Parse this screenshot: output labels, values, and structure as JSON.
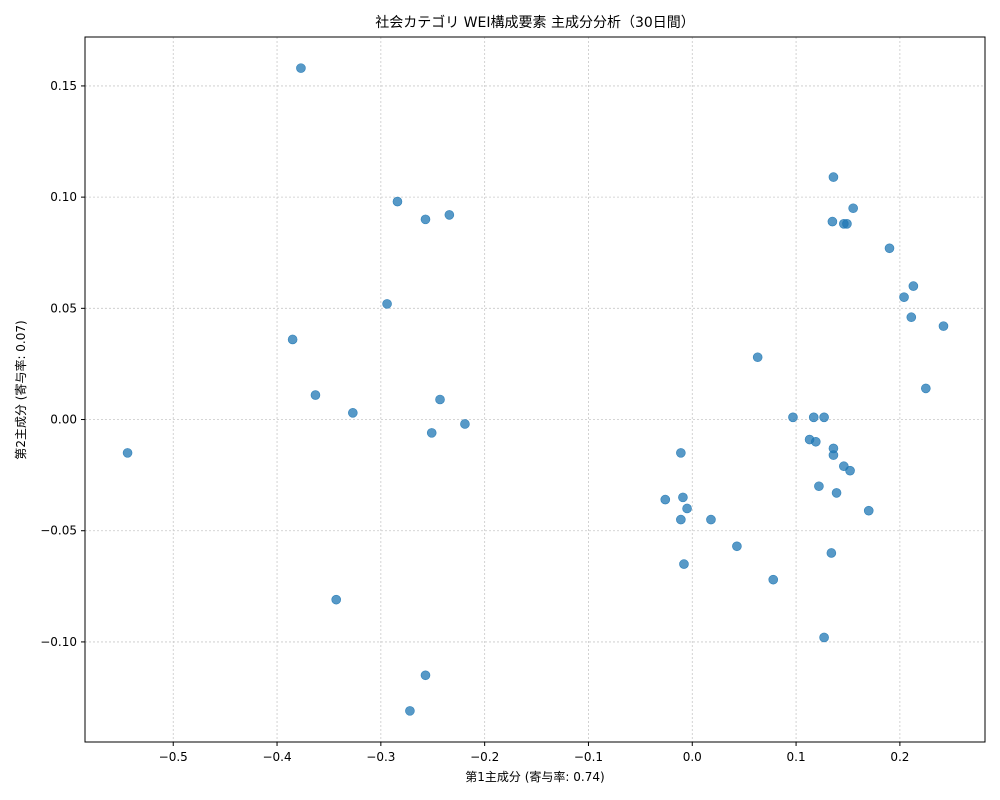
{
  "chart_data": {
    "type": "scatter",
    "title": "社会カテゴリ WEI構成要素 主成分分析（30日間）",
    "xlabel": "第1主成分 (寄与率: 0.74)",
    "ylabel": "第2主成分 (寄与率: 0.07)",
    "xlim": [
      -0.585,
      0.282
    ],
    "ylim": [
      -0.145,
      0.172
    ],
    "xticks": [
      -0.5,
      -0.4,
      -0.3,
      -0.2,
      -0.1,
      0.0,
      0.1,
      0.2
    ],
    "xtick_labels": [
      "−0.5",
      "−0.4",
      "−0.3",
      "−0.2",
      "−0.1",
      "0.0",
      "0.1",
      "0.2"
    ],
    "yticks": [
      -0.1,
      -0.05,
      0.0,
      0.05,
      0.1,
      0.15
    ],
    "ytick_labels": [
      "−0.10",
      "−0.05",
      "0.00",
      "0.05",
      "0.10",
      "0.15"
    ],
    "grid": true,
    "marker_color": "#1f77b4",
    "points": [
      [
        -0.377,
        0.158
      ],
      [
        -0.284,
        0.098
      ],
      [
        -0.257,
        0.09
      ],
      [
        -0.234,
        0.092
      ],
      [
        -0.294,
        0.052
      ],
      [
        -0.385,
        0.036
      ],
      [
        -0.363,
        0.011
      ],
      [
        -0.327,
        0.003
      ],
      [
        -0.243,
        0.009
      ],
      [
        -0.251,
        -0.006
      ],
      [
        -0.219,
        -0.002
      ],
      [
        -0.544,
        -0.015
      ],
      [
        -0.343,
        -0.081
      ],
      [
        -0.257,
        -0.115
      ],
      [
        -0.272,
        -0.131
      ],
      [
        -0.011,
        -0.015
      ],
      [
        -0.026,
        -0.036
      ],
      [
        -0.009,
        -0.035
      ],
      [
        -0.005,
        -0.04
      ],
      [
        -0.011,
        -0.045
      ],
      [
        0.018,
        -0.045
      ],
      [
        0.043,
        -0.057
      ],
      [
        -0.008,
        -0.065
      ],
      [
        0.078,
        -0.072
      ],
      [
        0.063,
        0.028
      ],
      [
        0.097,
        0.001
      ],
      [
        0.117,
        0.001
      ],
      [
        0.127,
        0.001
      ],
      [
        0.113,
        -0.009
      ],
      [
        0.119,
        -0.01
      ],
      [
        0.136,
        -0.013
      ],
      [
        0.136,
        -0.016
      ],
      [
        0.146,
        -0.021
      ],
      [
        0.152,
        -0.023
      ],
      [
        0.122,
        -0.03
      ],
      [
        0.139,
        -0.033
      ],
      [
        0.17,
        -0.041
      ],
      [
        0.134,
        -0.06
      ],
      [
        0.127,
        -0.098
      ],
      [
        0.136,
        0.109
      ],
      [
        0.155,
        0.095
      ],
      [
        0.135,
        0.089
      ],
      [
        0.146,
        0.088
      ],
      [
        0.149,
        0.088
      ],
      [
        0.19,
        0.077
      ],
      [
        0.213,
        0.06
      ],
      [
        0.204,
        0.055
      ],
      [
        0.211,
        0.046
      ],
      [
        0.242,
        0.042
      ],
      [
        0.225,
        0.014
      ]
    ]
  }
}
